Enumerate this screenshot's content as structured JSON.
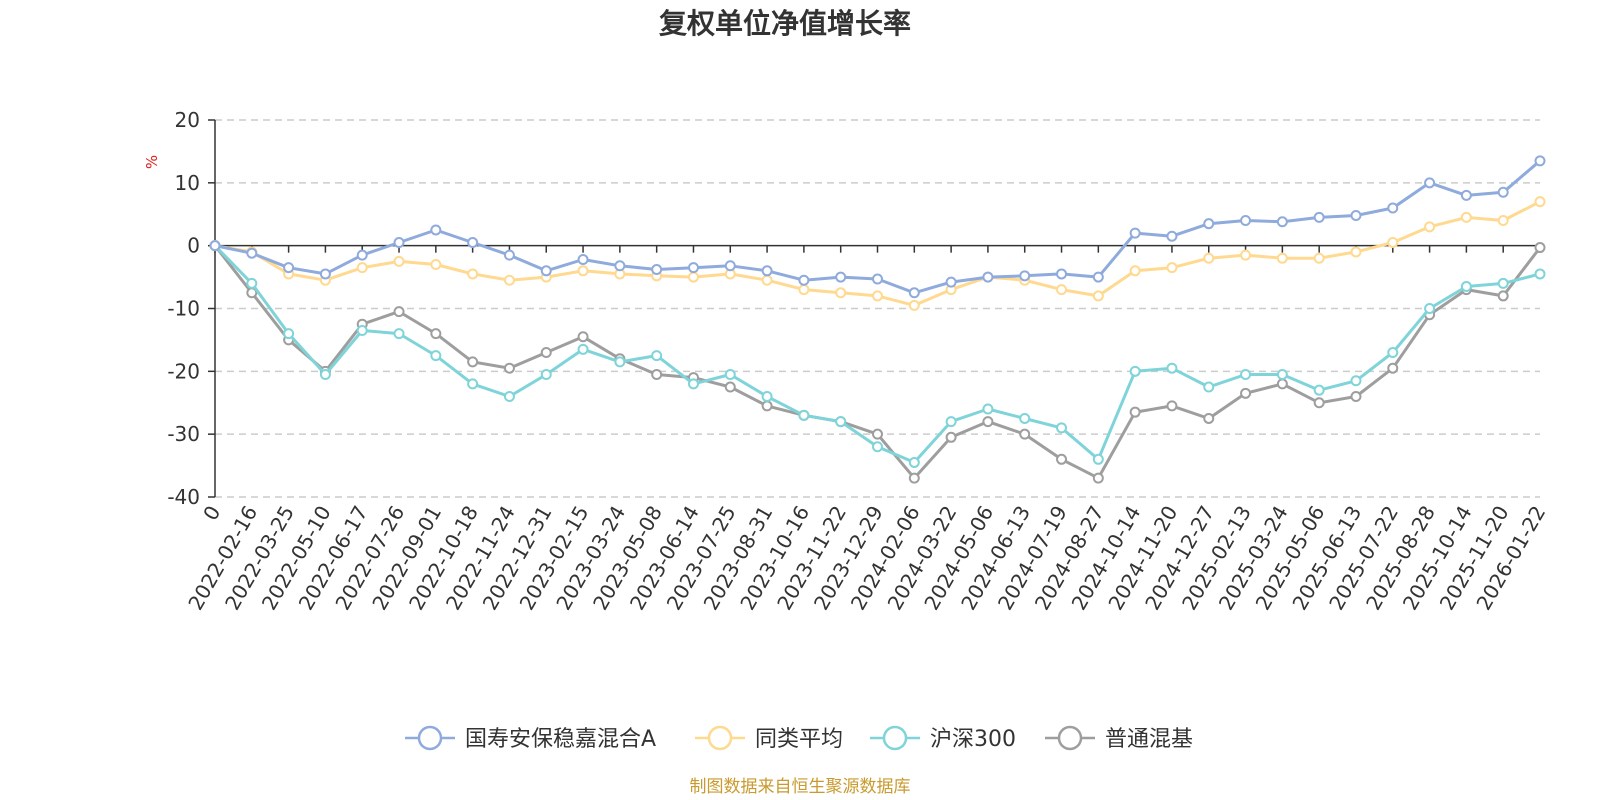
{
  "chart_data": {
    "type": "line",
    "title": "复权单位净值增长率",
    "ylabel": "%",
    "ylim": [
      -40,
      20
    ],
    "yticks": [
      20,
      10,
      0,
      -10,
      -20,
      -30,
      -40
    ],
    "x_tick_labels": [
      "0",
      "2022-02-16",
      "2022-03-25",
      "2022-05-10",
      "2022-06-17",
      "2022-07-26",
      "2022-09-01",
      "2022-10-18",
      "2022-11-24",
      "2022-12-31",
      "2023-02-15",
      "2023-03-24",
      "2023-05-08",
      "2023-06-14",
      "2023-07-25",
      "2023-08-31",
      "2023-10-16",
      "2023-11-22",
      "2023-12-29",
      "2024-02-06",
      "2024-03-22",
      "2024-05-06",
      "2024-06-13",
      "2024-07-19",
      "2024-08-27",
      "2024-10-14",
      "2024-11-20",
      "2024-12-27",
      "2025-02-13",
      "2025-03-24",
      "2025-05-06",
      "2025-06-13",
      "2025-07-22",
      "2025-08-28",
      "2025-10-14",
      "2025-11-20",
      "2026-01-22"
    ],
    "series": [
      {
        "name": "国寿安保稳嘉混合A",
        "color": "#8FAADC",
        "values": [
          0,
          -1.2,
          -3.5,
          -4.5,
          -1.5,
          0.5,
          2.5,
          0.5,
          -1.5,
          -4.0,
          -2.2,
          -3.2,
          -3.8,
          -3.5,
          -3.2,
          -4.0,
          -5.5,
          -5.0,
          -5.3,
          -7.5,
          -5.8,
          -5.0,
          -4.8,
          -4.5,
          -5.0,
          2.0,
          1.5,
          3.5,
          4.0,
          3.8,
          4.5,
          4.8,
          6.0,
          10.0,
          8.0,
          8.5,
          13.5
        ]
      },
      {
        "name": "同类平均",
        "color": "#FFD98F",
        "values": [
          0,
          -1.0,
          -4.5,
          -5.5,
          -3.5,
          -2.5,
          -3.0,
          -4.5,
          -5.5,
          -5.0,
          -4.0,
          -4.5,
          -4.8,
          -5.0,
          -4.5,
          -5.5,
          -7.0,
          -7.5,
          -8.0,
          -9.5,
          -7.0,
          -5.0,
          -5.5,
          -7.0,
          -8.0,
          -4.0,
          -3.5,
          -2.0,
          -1.5,
          -2.0,
          -2.0,
          -1.0,
          0.5,
          3.0,
          4.5,
          4.0,
          7.0
        ]
      },
      {
        "name": "沪深300",
        "color": "#7FD4D9",
        "values": [
          0,
          -6.0,
          -14.0,
          -20.5,
          -13.5,
          -14.0,
          -17.5,
          -22.0,
          -24.0,
          -20.5,
          -16.5,
          -18.5,
          -17.5,
          -22.0,
          -20.5,
          -24.0,
          -27.0,
          -28.0,
          -32.0,
          -34.5,
          -28.0,
          -26.0,
          -27.5,
          -29.0,
          -34.0,
          -20.0,
          -19.5,
          -22.5,
          -20.5,
          -20.5,
          -23.0,
          -21.5,
          -17.0,
          -10.0,
          -6.5,
          -6.0,
          -4.5
        ]
      },
      {
        "name": "普通混基",
        "color": "#9E9E9E",
        "values": [
          0,
          -7.5,
          -15.0,
          -20.0,
          -12.5,
          -10.5,
          -14.0,
          -18.5,
          -19.5,
          -17.0,
          -14.5,
          -18.0,
          -20.5,
          -21.0,
          -22.5,
          -25.5,
          -27.0,
          -28.0,
          -30.0,
          -37.0,
          -30.5,
          -28.0,
          -30.0,
          -34.0,
          -37.0,
          -26.5,
          -25.5,
          -27.5,
          -23.5,
          -22.0,
          -25.0,
          -24.0,
          -19.5,
          -11.0,
          -7.0,
          -8.0,
          -0.3
        ]
      }
    ]
  },
  "source_text": "制图数据来自恒生聚源数据库",
  "colors": {
    "axis": "#333333",
    "grid": "#cccccc",
    "ylabel": "#e02020",
    "source": "#c99a2e"
  }
}
